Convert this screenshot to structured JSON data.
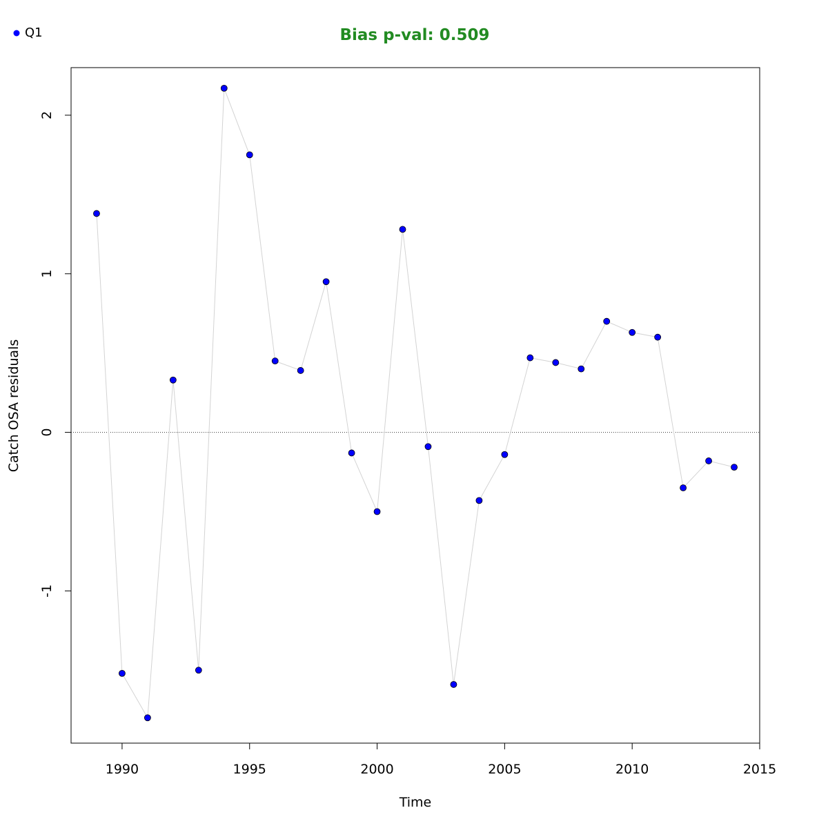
{
  "chart_data": {
    "type": "line",
    "title": "Bias p-val: 0.509",
    "title_color": "#228B22",
    "xlabel": "Time",
    "ylabel": "Catch OSA residuals",
    "xlim": [
      1988,
      2015
    ],
    "ylim": [
      -1.96,
      2.3
    ],
    "xticks": [
      1990,
      1995,
      2000,
      2005,
      2010,
      2015
    ],
    "yticks": [
      -1,
      0,
      1,
      2
    ],
    "reference_line": 0,
    "legend": {
      "position": "top-left",
      "entries": [
        {
          "label": "Q1",
          "color": "#0000FF"
        }
      ]
    },
    "line_color": "#D3D3D3",
    "point_color": "#0000FF",
    "series": [
      {
        "name": "Q1",
        "x": [
          1989,
          1990,
          1991,
          1992,
          1993,
          1994,
          1995,
          1996,
          1997,
          1998,
          1999,
          2000,
          2001,
          2002,
          2003,
          2004,
          2005,
          2006,
          2007,
          2008,
          2009,
          2010,
          2011,
          2012,
          2013,
          2014
        ],
        "y": [
          1.38,
          -1.52,
          -1.8,
          0.33,
          -1.5,
          2.17,
          1.75,
          0.45,
          0.39,
          0.95,
          -0.13,
          -0.5,
          1.28,
          -0.09,
          -1.59,
          -0.43,
          -0.14,
          0.47,
          0.44,
          0.4,
          0.7,
          0.63,
          0.6,
          -0.35,
          -0.18,
          -0.22
        ]
      }
    ]
  }
}
